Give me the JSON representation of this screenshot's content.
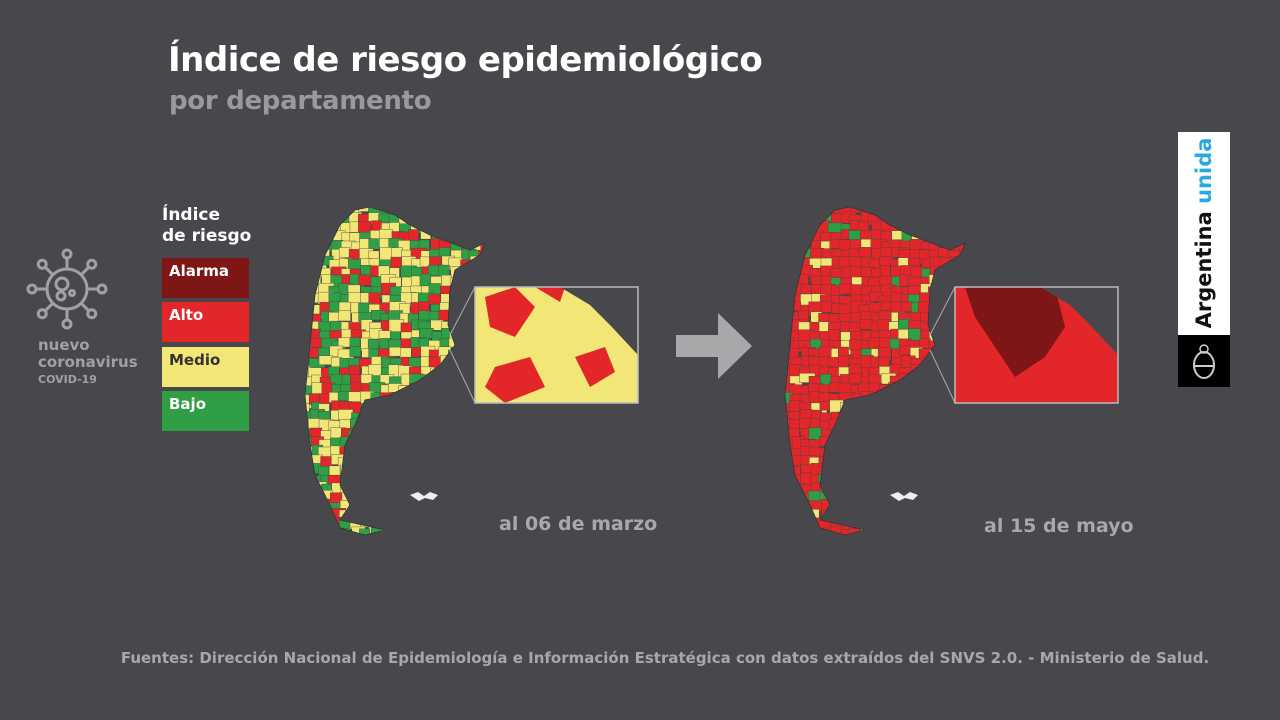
{
  "header": {
    "title": "Índice de riesgo epidemiológico",
    "subtitle": "por departamento"
  },
  "branding": {
    "campaign_line1": "nuevo",
    "campaign_line2": "coronavirus",
    "campaign_line3": "COVID-19",
    "logo_text_1": "Argentina",
    "logo_text_2": "unida"
  },
  "legend": {
    "title_line1": "Índice",
    "title_line2": "de riesgo",
    "items": [
      {
        "label": "Alarma",
        "color": "#7e1616",
        "text_color": "#ffffff"
      },
      {
        "label": "Alto",
        "color": "#e3262a",
        "text_color": "#ffffff"
      },
      {
        "label": "Medio",
        "color": "#f1e676",
        "text_color": "#333333"
      },
      {
        "label": "Bajo",
        "color": "#2f9e44",
        "text_color": "#ffffff"
      }
    ]
  },
  "maps": [
    {
      "date_label": "al 06 de marzo",
      "dominant": "Medio/Bajo",
      "inset_dominant": "Medio"
    },
    {
      "date_label": "al 15 de mayo",
      "dominant": "Alto",
      "inset_dominant": "Alarma"
    }
  ],
  "footer": {
    "source": "Fuentes: Dirección Nacional de Epidemiología e Información Estratégica con datos extraídos del SNVS 2.0. - Ministerio de Salud."
  }
}
